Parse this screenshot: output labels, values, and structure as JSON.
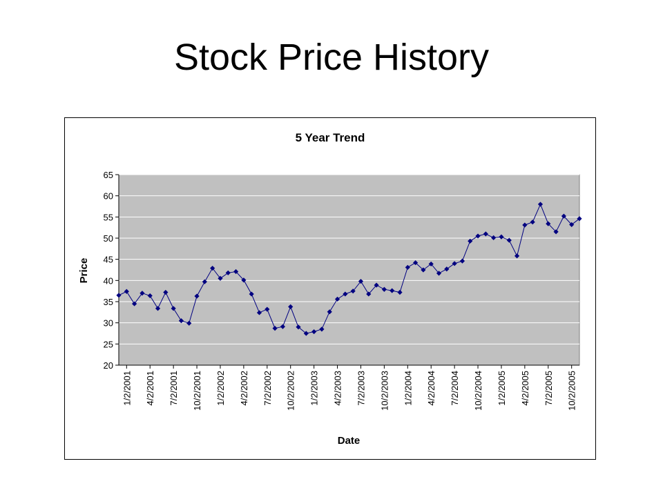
{
  "slide": {
    "title": "Stock Price History"
  },
  "colors": {
    "plot_background": "#c0c0c0",
    "series": "#000080",
    "gridline": "#ffffff",
    "axis": "#000000"
  },
  "chart_data": {
    "type": "line",
    "title": "5 Year Trend",
    "xlabel": "Date",
    "ylabel": "Price",
    "ylim": [
      20,
      65
    ],
    "yticks": [
      20,
      25,
      30,
      35,
      40,
      45,
      50,
      55,
      60,
      65
    ],
    "xtick_labels": [
      "1/2/2001",
      "4/2/2001",
      "7/2/2001",
      "10/2/2001",
      "1/2/2002",
      "4/2/2002",
      "7/2/2002",
      "10/2/2002",
      "1/2/2003",
      "4/2/2003",
      "7/2/2003",
      "10/2/2003",
      "1/2/2004",
      "4/2/2004",
      "7/2/2004",
      "10/2/2004",
      "1/2/2005",
      "4/2/2005",
      "7/2/2005",
      "10/2/2005"
    ],
    "grid": "horizontal",
    "legend": "none",
    "marker": "diamond",
    "series": [
      {
        "values": [
          36.5,
          37.4,
          34.5,
          37.0,
          36.4,
          33.4,
          37.2,
          33.4,
          30.5,
          29.9,
          36.3,
          39.7,
          42.9,
          40.5,
          41.8,
          42.1,
          40.1,
          36.8,
          32.4,
          33.2,
          28.7,
          29.1,
          33.8,
          29.0,
          27.5,
          27.9,
          28.5,
          32.6,
          35.6,
          36.8,
          37.5,
          39.8,
          36.8,
          38.9,
          37.9,
          37.6,
          37.2,
          43.1,
          44.2,
          42.5,
          43.9,
          41.7,
          42.7,
          44.0,
          44.6,
          49.3,
          50.5,
          51.0,
          50.1,
          50.3,
          49.5,
          45.8,
          53.1,
          53.8,
          58.0,
          53.4,
          51.5,
          55.2,
          53.2,
          54.6
        ]
      }
    ]
  }
}
